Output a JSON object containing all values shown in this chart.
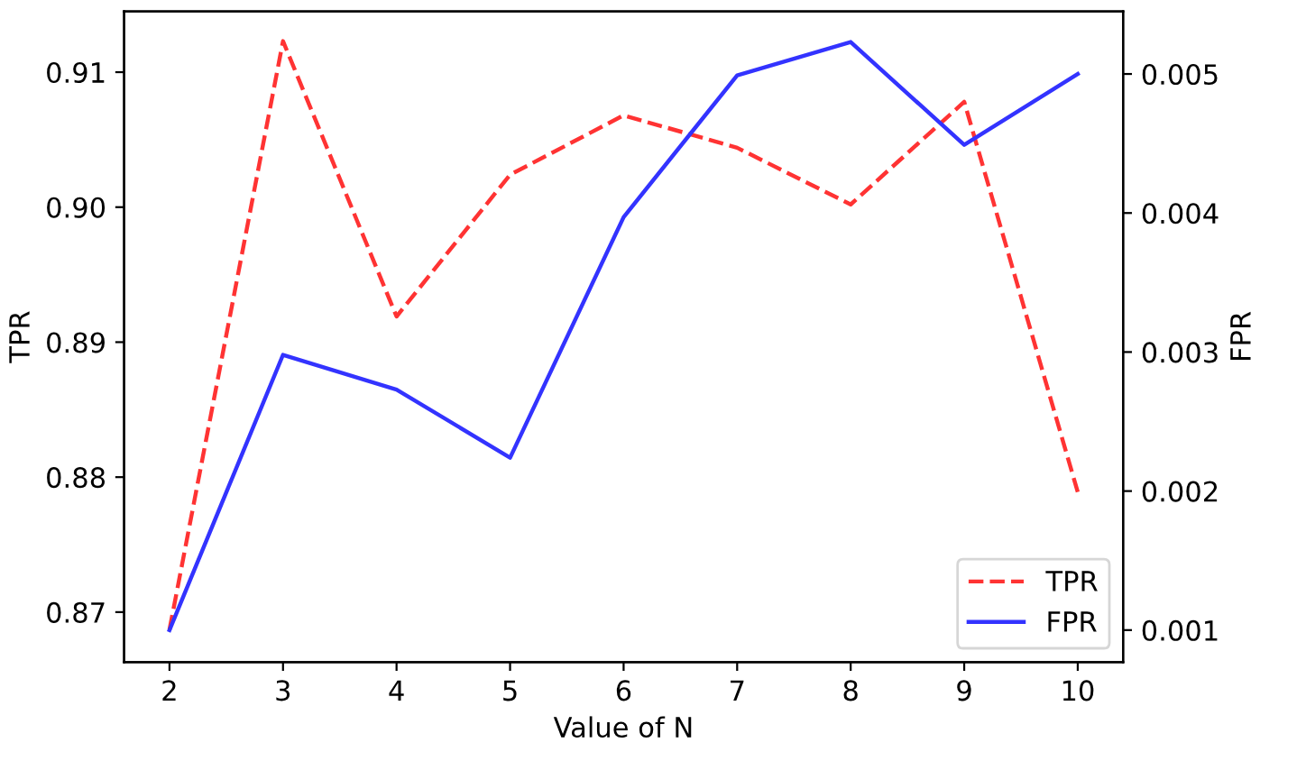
{
  "chart_data": {
    "type": "line",
    "xlabel": "Value of N",
    "ylabel": "TPR",
    "y2label": "FPR",
    "x": [
      2,
      3,
      4,
      5,
      6,
      7,
      8,
      9,
      10
    ],
    "series": [
      {
        "name": "TPR",
        "color": "#ff3333",
        "line_style": "dashed",
        "values": [
          0.8687,
          0.9123,
          0.8919,
          0.9024,
          0.9068,
          0.9044,
          0.9002,
          0.9078,
          0.8789
        ]
      },
      {
        "name": "FPR",
        "color": "#3333ff",
        "line_style": "solid",
        "axis": "y2",
        "values": [
          0.001,
          0.00298,
          0.00273,
          0.00224,
          0.00397,
          0.00499,
          0.00523,
          0.00449,
          0.005
        ]
      }
    ],
    "xlim": [
      1.6,
      10.4
    ],
    "xticks": [
      2,
      3,
      4,
      5,
      6,
      7,
      8,
      9,
      10
    ],
    "ylim": [
      0.8663,
      0.9145
    ],
    "yticks": [
      {
        "value": 0.87,
        "label": "0.87"
      },
      {
        "value": 0.88,
        "label": "0.88"
      },
      {
        "value": 0.89,
        "label": "0.89"
      },
      {
        "value": 0.9,
        "label": "0.90"
      },
      {
        "value": 0.91,
        "label": "0.91"
      }
    ],
    "y2lim": [
      0.00077,
      0.00545
    ],
    "y2ticks": [
      0.001,
      0.002,
      0.003,
      0.004,
      0.005
    ],
    "grid": false,
    "legend": "bottom right",
    "marker": "none"
  }
}
